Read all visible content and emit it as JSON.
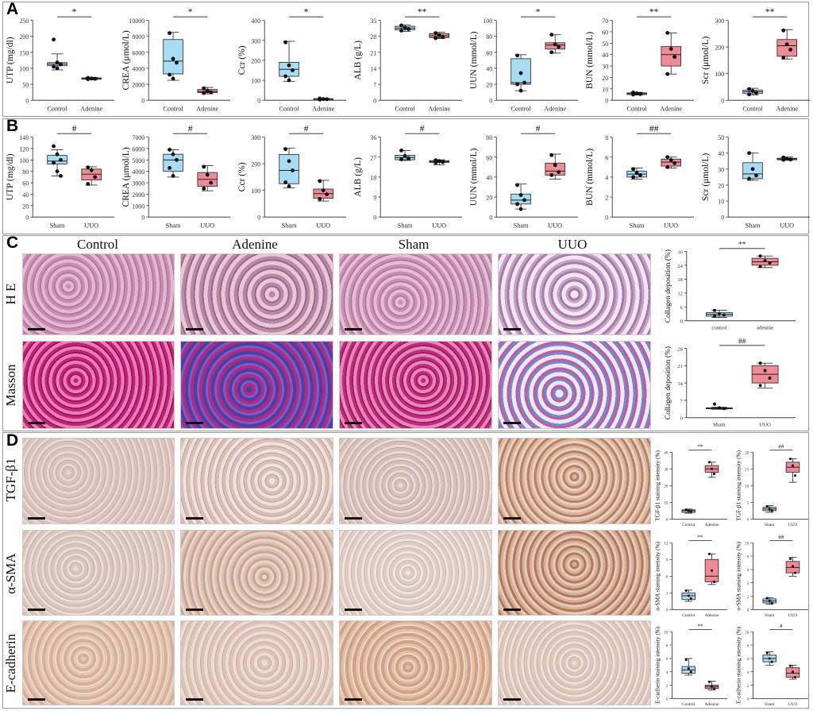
{
  "panel_labels": [
    "A",
    "B",
    "C",
    "D"
  ],
  "groups": {
    "A": [
      "Control",
      "Adenine"
    ],
    "B": [
      "Sham",
      "UUO"
    ]
  },
  "colors": {
    "control": "#a8dcf2",
    "treat": "#f08a95"
  },
  "chart_data": [
    {
      "type": "box",
      "panel": "A",
      "ylabel": "UTP (mg/dl)",
      "ylim": [
        0,
        250
      ],
      "yticks": [
        0,
        50,
        100,
        150,
        200,
        250
      ],
      "sig": "*",
      "boxes": [
        {
          "q1": 108,
          "median": 113,
          "q3": 118,
          "min": 95,
          "max": 145,
          "points": [
            190,
            118,
            112,
            105,
            100
          ]
        },
        {
          "q1": 66,
          "median": 68,
          "q3": 70,
          "min": 64,
          "max": 72,
          "points": [
            70,
            68,
            67,
            66
          ]
        }
      ]
    },
    {
      "type": "box",
      "panel": "A",
      "ylabel": "CREA (μmol/L)",
      "ylim": [
        0,
        10000
      ],
      "yticks": [
        0,
        2000,
        4000,
        6000,
        8000,
        10000
      ],
      "sig": "*",
      "boxes": [
        {
          "q1": 3300,
          "median": 4900,
          "q3": 7600,
          "min": 2500,
          "max": 8500,
          "points": [
            8400,
            5200,
            4700,
            3200,
            2700
          ]
        },
        {
          "q1": 950,
          "median": 1100,
          "q3": 1350,
          "min": 800,
          "max": 1600,
          "points": [
            1500,
            1200,
            1000,
            900
          ]
        }
      ]
    },
    {
      "type": "box",
      "panel": "A",
      "ylabel": "Ccr (%)",
      "ylim": [
        0,
        400
      ],
      "yticks": [
        0,
        100,
        200,
        300,
        400
      ],
      "sig": "*",
      "boxes": [
        {
          "q1": 120,
          "median": 155,
          "q3": 190,
          "min": 95,
          "max": 295,
          "points": [
            290,
            175,
            150,
            120,
            100
          ]
        },
        {
          "q1": 4,
          "median": 6,
          "q3": 8,
          "min": 2,
          "max": 10,
          "points": [
            9,
            6,
            5,
            3
          ]
        }
      ]
    },
    {
      "type": "box",
      "panel": "A",
      "ylabel": "ALB (g/L)",
      "ylim": [
        0,
        35
      ],
      "yticks": [
        0,
        7,
        14,
        21,
        28,
        35
      ],
      "sig": "**",
      "boxes": [
        {
          "q1": 30.8,
          "median": 31.6,
          "q3": 32.4,
          "min": 30.2,
          "max": 33,
          "points": [
            32.8,
            31.8,
            31.2,
            30.5
          ]
        },
        {
          "q1": 27.4,
          "median": 28.2,
          "q3": 29.2,
          "min": 27,
          "max": 29.8,
          "points": [
            29.4,
            28.5,
            27.8,
            27.2
          ]
        }
      ]
    },
    {
      "type": "box",
      "panel": "A",
      "ylabel": "UUN (mmol/L)",
      "ylim": [
        0,
        100
      ],
      "yticks": [
        0,
        20,
        40,
        60,
        80,
        100
      ],
      "sig": "*",
      "boxes": [
        {
          "q1": 20,
          "median": 22,
          "q3": 52,
          "min": 12,
          "max": 57,
          "points": [
            56,
            34,
            22,
            20,
            12
          ]
        },
        {
          "q1": 64,
          "median": 69,
          "q3": 72,
          "min": 59,
          "max": 82,
          "points": [
            82,
            70,
            67,
            60
          ]
        }
      ]
    },
    {
      "type": "box",
      "panel": "A",
      "ylabel": "BUN (mmol/L)",
      "ylim": [
        0,
        70
      ],
      "yticks": [
        0,
        10,
        20,
        30,
        40,
        50,
        60,
        70
      ],
      "sig": "**",
      "boxes": [
        {
          "q1": 5,
          "median": 5.8,
          "q3": 6.5,
          "min": 4.5,
          "max": 7,
          "points": [
            6.8,
            6,
            5.5,
            5
          ]
        },
        {
          "q1": 30,
          "median": 40,
          "q3": 47,
          "min": 23,
          "max": 59,
          "points": [
            59,
            45,
            38,
            23
          ]
        }
      ]
    },
    {
      "type": "box",
      "panel": "A",
      "ylabel": "Scr (μmol/L)",
      "ylim": [
        0,
        300
      ],
      "yticks": [
        0,
        100,
        200,
        300
      ],
      "sig": "**",
      "boxes": [
        {
          "q1": 25,
          "median": 32,
          "q3": 38,
          "min": 20,
          "max": 45,
          "points": [
            42,
            35,
            28,
            22
          ]
        },
        {
          "q1": 165,
          "median": 205,
          "q3": 228,
          "min": 155,
          "max": 265,
          "points": [
            262,
            210,
            190,
            160
          ]
        }
      ]
    },
    {
      "type": "box",
      "panel": "B",
      "ylabel": "UTP (mg/dl)",
      "ylim": [
        0,
        140
      ],
      "yticks": [
        0,
        20,
        40,
        60,
        80,
        100,
        120,
        140
      ],
      "sig": "#",
      "boxes": [
        {
          "q1": 93,
          "median": 98,
          "q3": 108,
          "min": 72,
          "max": 118,
          "points": [
            124,
            110,
            100,
            95,
            80,
            72
          ]
        },
        {
          "q1": 65,
          "median": 75,
          "q3": 84,
          "min": 56,
          "max": 88,
          "points": [
            87,
            82,
            70,
            58
          ]
        }
      ]
    },
    {
      "type": "box",
      "panel": "B",
      "ylabel": "CREA (μmol/L)",
      "ylim": [
        0,
        7000
      ],
      "yticks": [
        0,
        1000,
        2000,
        3000,
        4000,
        5000,
        6000,
        7000
      ],
      "sig": "#",
      "boxes": [
        {
          "q1": 4000,
          "median": 5000,
          "q3": 5500,
          "min": 3500,
          "max": 5900,
          "points": [
            5900,
            5500,
            5000,
            4300,
            3600
          ]
        },
        {
          "q1": 2700,
          "median": 3300,
          "q3": 3900,
          "min": 2300,
          "max": 4500,
          "points": [
            4400,
            3700,
            3000,
            2500
          ]
        }
      ]
    },
    {
      "type": "box",
      "panel": "B",
      "ylabel": "Ccr (%)",
      "ylim": [
        0,
        300
      ],
      "yticks": [
        0,
        100,
        200,
        300
      ],
      "sig": "#",
      "boxes": [
        {
          "q1": 125,
          "median": 175,
          "q3": 235,
          "min": 110,
          "max": 258,
          "points": [
            255,
            210,
            175,
            130,
            115
          ]
        },
        {
          "q1": 70,
          "median": 88,
          "q3": 105,
          "min": 60,
          "max": 138,
          "points": [
            135,
            100,
            85,
            68
          ]
        }
      ]
    },
    {
      "type": "box",
      "panel": "B",
      "ylabel": "ALB (g/L)",
      "ylim": [
        0,
        36
      ],
      "yticks": [
        0,
        9,
        18,
        27,
        36
      ],
      "sig": "#",
      "boxes": [
        {
          "q1": 25.8,
          "median": 26.8,
          "q3": 27.8,
          "min": 25.5,
          "max": 30,
          "points": [
            30,
            27.5,
            26.5,
            26
          ]
        },
        {
          "q1": 24.6,
          "median": 25,
          "q3": 25.4,
          "min": 23.5,
          "max": 25.8,
          "points": [
            25.6,
            25.2,
            24.8,
            24.5
          ]
        }
      ]
    },
    {
      "type": "box",
      "panel": "B",
      "ylabel": "UUN (mmol/L)",
      "ylim": [
        0,
        80
      ],
      "yticks": [
        0,
        20,
        40,
        60,
        80
      ],
      "sig": "#",
      "boxes": [
        {
          "q1": 13,
          "median": 17,
          "q3": 23,
          "min": 8,
          "max": 33,
          "points": [
            32,
            22,
            17,
            13,
            8
          ]
        },
        {
          "q1": 42,
          "median": 46,
          "q3": 54,
          "min": 38,
          "max": 63,
          "points": [
            62,
            52,
            45,
            42
          ]
        }
      ]
    },
    {
      "type": "box",
      "panel": "B",
      "ylabel": "BUN (mmol/L)",
      "ylim": [
        0,
        8
      ],
      "yticks": [
        0,
        2,
        4,
        6,
        8
      ],
      "sig": "##",
      "boxes": [
        {
          "q1": 4,
          "median": 4.3,
          "q3": 4.6,
          "min": 3.8,
          "max": 4.9,
          "points": [
            4.8,
            4.4,
            4.2,
            4
          ]
        },
        {
          "q1": 5.1,
          "median": 5.5,
          "q3": 5.8,
          "min": 4.9,
          "max": 6,
          "points": [
            6,
            5.7,
            5.4,
            5
          ]
        }
      ]
    },
    {
      "type": "box",
      "panel": "B",
      "ylabel": "Scr (μmol/L)",
      "ylim": [
        0,
        50
      ],
      "yticks": [
        0,
        10,
        20,
        30,
        40,
        50
      ],
      "sig": "",
      "boxes": [
        {
          "q1": 24,
          "median": 27,
          "q3": 34,
          "min": 23,
          "max": 40,
          "points": [
            40,
            30,
            26,
            24
          ]
        },
        {
          "q1": 35.8,
          "median": 36.3,
          "q3": 36.8,
          "min": 35.5,
          "max": 37.5,
          "points": [
            37.3,
            36.5,
            36,
            35.8
          ]
        }
      ]
    },
    {
      "type": "box",
      "panel": "C",
      "ylabel": "Collagen deposition (%)",
      "ylim": [
        0,
        30
      ],
      "yticks": [
        0,
        6,
        12,
        18,
        24,
        30
      ],
      "sig": "**",
      "cats": [
        "control",
        "adenine"
      ],
      "boxes": [
        {
          "q1": 2,
          "median": 2.8,
          "q3": 3.5,
          "min": 1.5,
          "max": 4.5,
          "points": [
            4.5,
            3,
            2.5,
            2
          ]
        },
        {
          "q1": 24,
          "median": 25.5,
          "q3": 27,
          "min": 23,
          "max": 28,
          "points": [
            28,
            26,
            25,
            23.5
          ]
        }
      ]
    },
    {
      "type": "box",
      "panel": "C",
      "ylabel": "Collagen deposition (%)",
      "ylim": [
        0,
        28
      ],
      "yticks": [
        0,
        7,
        14,
        21,
        28
      ],
      "sig": "##",
      "cats": [
        "Sham",
        "UUO"
      ],
      "boxes": [
        {
          "q1": 3.6,
          "median": 3.8,
          "q3": 4,
          "min": 3.4,
          "max": 4.2,
          "points": [
            5.5,
            4,
            3.7
          ]
        },
        {
          "q1": 14,
          "median": 17.5,
          "q3": 21,
          "min": 12,
          "max": 22,
          "points": [
            22,
            19,
            16,
            13
          ]
        }
      ]
    }
  ],
  "micrographs": {
    "columns": [
      "Control",
      "Adenine",
      "Sham",
      "UUO"
    ],
    "rows_C": [
      "H E",
      "Masson"
    ],
    "rows_D": [
      "TGF-β1",
      "α-SMA",
      "E-cadherin"
    ]
  },
  "panel_D_charts": [
    {
      "ylabel": "TGF-β1 staining intensity (%)",
      "cats": [
        "Control",
        "Adenine"
      ],
      "sig": "**",
      "ylim": [
        0,
        40
      ],
      "yticks": [
        0,
        10,
        20,
        30,
        40
      ],
      "boxes": [
        {
          "q1": 4,
          "median": 5,
          "q3": 5.5,
          "min": 3.5,
          "max": 6,
          "points": [
            5.5,
            5,
            4.5
          ]
        },
        {
          "q1": 28,
          "median": 30,
          "q3": 32,
          "min": 25,
          "max": 34,
          "points": [
            34,
            30,
            27
          ]
        }
      ]
    },
    {
      "ylabel": "TGF-β1 staining intensity (%)",
      "cats": [
        "Sham",
        "UUO"
      ],
      "sig": "##",
      "ylim": [
        0,
        20
      ],
      "yticks": [
        0,
        5,
        10,
        15,
        20
      ],
      "boxes": [
        {
          "q1": 2.5,
          "median": 3,
          "q3": 3.5,
          "min": 2,
          "max": 4,
          "points": [
            3.8,
            3,
            2.5
          ]
        },
        {
          "q1": 14,
          "median": 15.5,
          "q3": 17,
          "min": 11,
          "max": 18,
          "points": [
            18,
            16,
            13
          ]
        }
      ]
    },
    {
      "ylabel": "α-SMA staining intensity (%)",
      "cats": [
        "Control",
        "Adenine"
      ],
      "sig": "**",
      "ylim": [
        0,
        12
      ],
      "yticks": [
        0,
        3,
        6,
        9,
        12
      ],
      "boxes": [
        {
          "q1": 1.8,
          "median": 2.5,
          "q3": 3,
          "min": 1.5,
          "max": 3.5,
          "points": [
            3.4,
            2.5,
            2
          ]
        },
        {
          "q1": 5,
          "median": 6,
          "q3": 9,
          "min": 4.5,
          "max": 10,
          "points": [
            10,
            7,
            5
          ]
        }
      ]
    },
    {
      "ylabel": "α-SMA staining intensity (%)",
      "cats": [
        "Sham",
        "UUO"
      ],
      "sig": "##",
      "ylim": [
        0,
        10
      ],
      "yticks": [
        0,
        2,
        4,
        6,
        8,
        10
      ],
      "boxes": [
        {
          "q1": 1,
          "median": 1.3,
          "q3": 1.6,
          "min": 0.8,
          "max": 1.8,
          "points": [
            1.7,
            1.3,
            1
          ]
        },
        {
          "q1": 5.5,
          "median": 6.3,
          "q3": 7.2,
          "min": 5,
          "max": 7.8,
          "points": [
            7.6,
            6.5,
            5.5
          ]
        }
      ]
    },
    {
      "ylabel": "E-cadherin staining intensity (%)",
      "cats": [
        "Control",
        "Adenine"
      ],
      "sig": "**",
      "ylim": [
        0,
        10
      ],
      "yticks": [
        0,
        2,
        4,
        6,
        8,
        10
      ],
      "boxes": [
        {
          "q1": 3.8,
          "median": 4.3,
          "q3": 4.8,
          "min": 3.5,
          "max": 6,
          "points": [
            5.8,
            4.5,
            4
          ]
        },
        {
          "q1": 1.5,
          "median": 1.8,
          "q3": 2,
          "min": 1.3,
          "max": 2.6,
          "points": [
            2.5,
            1.8,
            1.5
          ]
        }
      ]
    },
    {
      "ylabel": "E-cadherin staining intensity (%)",
      "cats": [
        "Sham",
        "UUO"
      ],
      "sig": "#",
      "ylim": [
        0,
        10
      ],
      "yticks": [
        0,
        2,
        4,
        6,
        8,
        10
      ],
      "boxes": [
        {
          "q1": 5.5,
          "median": 6,
          "q3": 6.5,
          "min": 5,
          "max": 7,
          "points": [
            6.8,
            6,
            5.5
          ]
        },
        {
          "q1": 3.2,
          "median": 3.8,
          "q3": 4.6,
          "min": 2.9,
          "max": 5,
          "points": [
            4.9,
            4,
            3.2
          ]
        }
      ]
    }
  ]
}
